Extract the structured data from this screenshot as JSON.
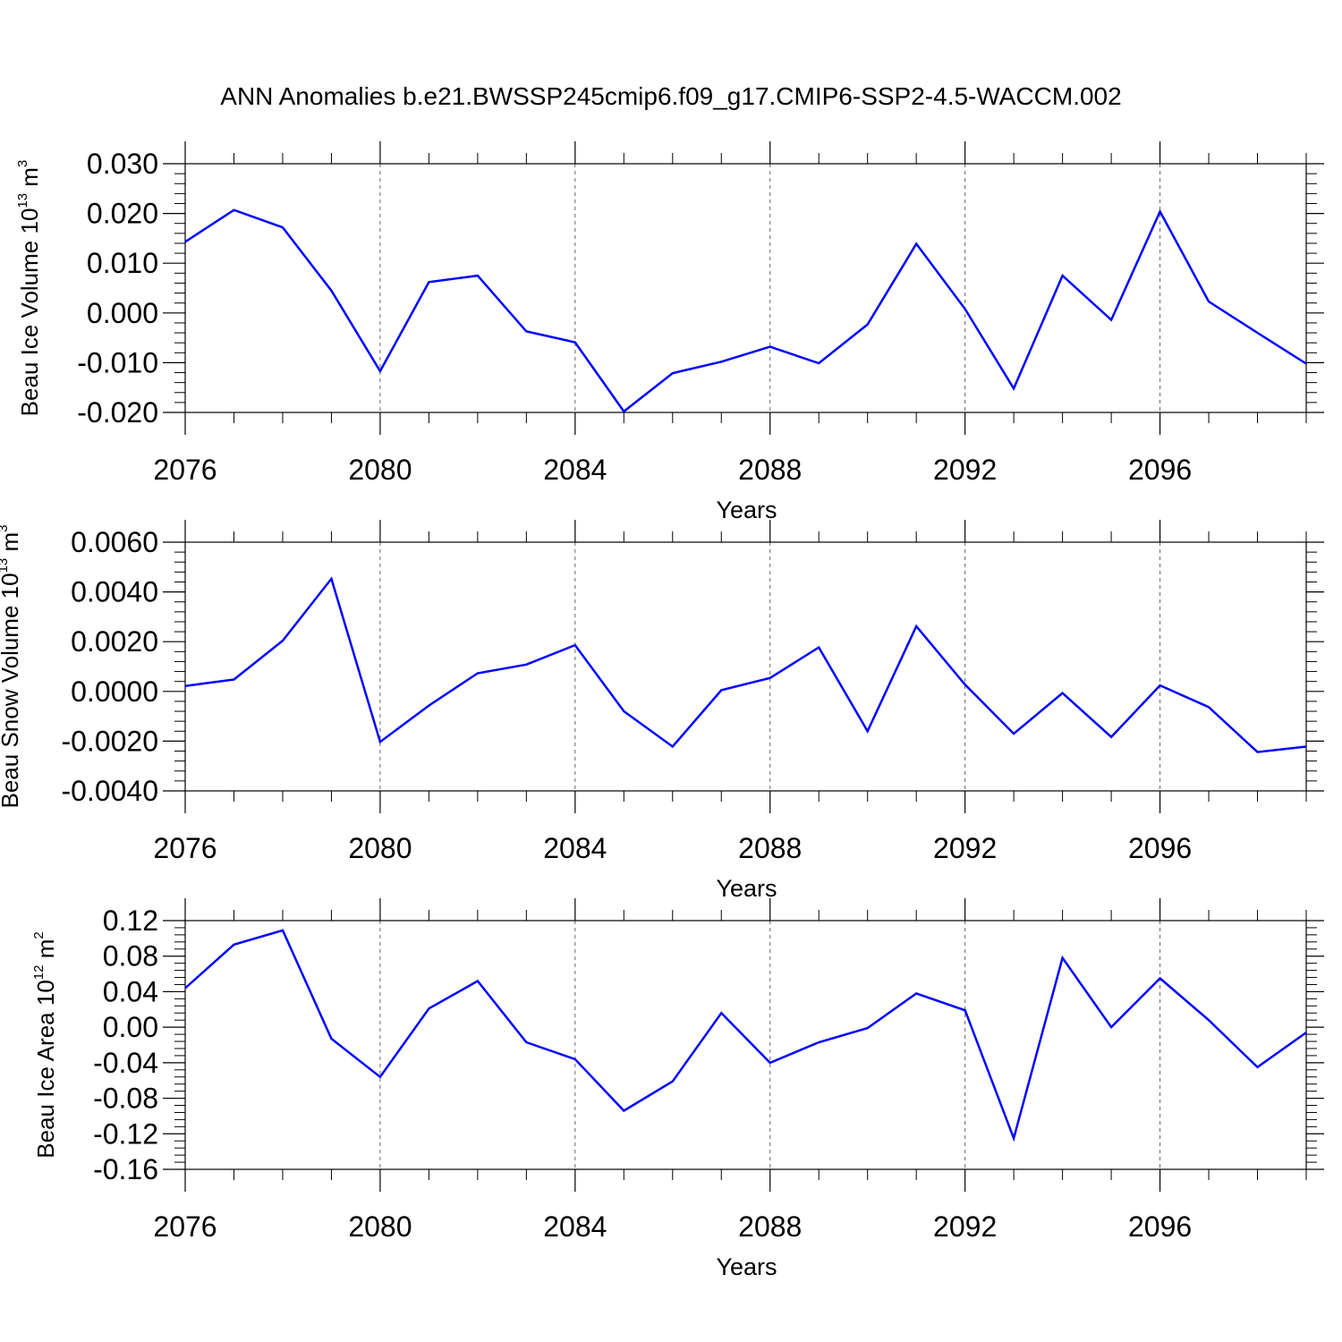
{
  "title": "ANN Anomalies b.e21.BWSSP245cmip6.f09_g17.CMIP6-SSP2-4.5-WACCM.002",
  "line_color": "#0000ff",
  "chart_data": [
    {
      "type": "line",
      "ylabel": "Beau Ice Volume",
      "unit_base": "10",
      "unit_exp": "13",
      "unit_tail": "m",
      "unit_tail_exp": "3",
      "xlabel": "Years",
      "xlim": [
        2076,
        2099
      ],
      "ylim": [
        -0.02,
        0.03
      ],
      "xticks": [
        2076,
        2080,
        2084,
        2088,
        2092,
        2096
      ],
      "xtick_labels": [
        "2076",
        "2080",
        "2084",
        "2088",
        "2092",
        "2096"
      ],
      "yticks": [
        -0.02,
        -0.01,
        0,
        0.01,
        0.02,
        0.03
      ],
      "ytick_labels": [
        "-0.020",
        "-0.010",
        "0.000",
        "0.010",
        "0.020",
        "0.030"
      ],
      "grid": "dashed vertical at labeled years",
      "x": [
        2076,
        2077,
        2078,
        2079,
        2080,
        2081,
        2082,
        2083,
        2084,
        2085,
        2086,
        2087,
        2088,
        2089,
        2090,
        2091,
        2092,
        2093,
        2094,
        2095,
        2096,
        2097,
        2098,
        2099
      ],
      "values": [
        0.0143,
        0.0207,
        0.0172,
        0.0045,
        -0.0117,
        0.0062,
        0.0075,
        -0.0037,
        -0.0059,
        -0.0198,
        -0.0121,
        -0.0098,
        -0.0068,
        -0.0101,
        -0.0023,
        0.0139,
        0.0008,
        -0.0152,
        0.0075,
        -0.0014,
        0.0204,
        0.0023,
        -0.004,
        -0.0102
      ]
    },
    {
      "type": "line",
      "ylabel": "Beau Snow Volume",
      "unit_base": "10",
      "unit_exp": "13",
      "unit_tail": "m",
      "unit_tail_exp": "3",
      "xlabel": "Years",
      "xlim": [
        2076,
        2099
      ],
      "ylim": [
        -0.004,
        0.006
      ],
      "xticks": [
        2076,
        2080,
        2084,
        2088,
        2092,
        2096
      ],
      "xtick_labels": [
        "2076",
        "2080",
        "2084",
        "2088",
        "2092",
        "2096"
      ],
      "yticks": [
        -0.004,
        -0.002,
        0,
        0.002,
        0.004,
        0.006
      ],
      "ytick_labels": [
        "-0.0040",
        "-0.0020",
        "0.0000",
        "0.0020",
        "0.0040",
        "0.0060"
      ],
      "grid": "dashed vertical at labeled years",
      "x": [
        2076,
        2077,
        2078,
        2079,
        2080,
        2081,
        2082,
        2083,
        2084,
        2085,
        2086,
        2087,
        2088,
        2089,
        2090,
        2091,
        2092,
        2093,
        2094,
        2095,
        2096,
        2097,
        2098,
        2099
      ],
      "values": [
        0.00022,
        0.00048,
        0.00204,
        0.00453,
        -0.00203,
        -0.00057,
        0.00073,
        0.00108,
        0.00186,
        -0.0008,
        -0.00222,
        5e-05,
        0.00054,
        0.00177,
        -0.0016,
        0.00262,
        0.00027,
        -0.0017,
        -7e-05,
        -0.00183,
        0.00024,
        -0.00063,
        -0.00244,
        -0.00222
      ]
    },
    {
      "type": "line",
      "ylabel": "Beau Ice Area",
      "unit_base": "10",
      "unit_exp": "12",
      "unit_tail": "m",
      "unit_tail_exp": "2",
      "xlabel": "Years",
      "xlim": [
        2076,
        2099
      ],
      "ylim": [
        -0.16,
        0.12
      ],
      "xticks": [
        2076,
        2080,
        2084,
        2088,
        2092,
        2096
      ],
      "xtick_labels": [
        "2076",
        "2080",
        "2084",
        "2088",
        "2092",
        "2096"
      ],
      "yticks": [
        -0.16,
        -0.12,
        -0.08,
        -0.04,
        0,
        0.04,
        0.08,
        0.12
      ],
      "ytick_labels": [
        "-0.16",
        "-0.12",
        "-0.08",
        "-0.04",
        "0.00",
        "0.04",
        "0.08",
        "0.12"
      ],
      "grid": "dashed vertical at labeled years",
      "x": [
        2076,
        2077,
        2078,
        2079,
        2080,
        2081,
        2082,
        2083,
        2084,
        2085,
        2086,
        2087,
        2088,
        2089,
        2090,
        2091,
        2092,
        2093,
        2094,
        2095,
        2096,
        2097,
        2098,
        2099
      ],
      "values": [
        0.044,
        0.093,
        0.109,
        -0.013,
        -0.056,
        0.021,
        0.052,
        -0.017,
        -0.036,
        -0.094,
        -0.061,
        0.016,
        -0.04,
        -0.017,
        -0.001,
        0.038,
        0.019,
        -0.125,
        0.078,
        0.0,
        0.055,
        0.008,
        -0.045,
        -0.006
      ]
    }
  ]
}
